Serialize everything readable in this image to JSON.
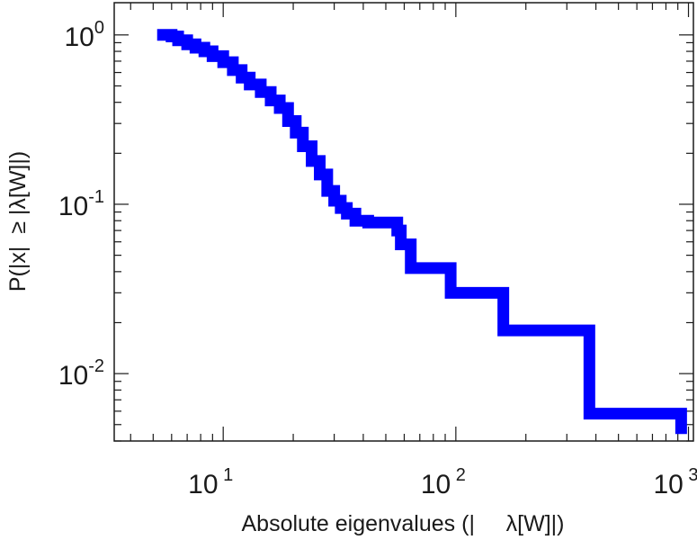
{
  "chart_data": {
    "type": "line",
    "title": "",
    "xlabel": "Absolute eigenvalues (|     λ[W]|)",
    "ylabel": "P(|x|  ≥ |λ[W]|)",
    "x_scale": "log",
    "y_scale": "log",
    "xlim": [
      3.4,
      1050
    ],
    "ylim": [
      0.004,
      1.55
    ],
    "grid": false,
    "legend": "none",
    "x_ticks": [
      {
        "base": "10",
        "exp": "1",
        "value": 10
      },
      {
        "base": "10",
        "exp": "2",
        "value": 100
      },
      {
        "base": "10",
        "exp": "3",
        "value": 1000
      }
    ],
    "y_ticks": [
      {
        "base": "10",
        "exp": "0",
        "value": 1
      },
      {
        "base": "10",
        "exp": "-1",
        "value": 0.1
      },
      {
        "base": "10",
        "exp": "-2",
        "value": 0.01
      }
    ],
    "series": [
      {
        "color": "#0000ff",
        "style": "step",
        "x": [
          5.2,
          6.0,
          6.4,
          7.0,
          7.6,
          8.3,
          9.0,
          10.0,
          11.0,
          12.0,
          13.0,
          14.5,
          16.0,
          17.5,
          19.0,
          20.5,
          22.0,
          24.0,
          26.0,
          28.0,
          30.0,
          32.0,
          34.0,
          37.0,
          42.0,
          44.0,
          50.0,
          56.0,
          58.0,
          64.0,
          95.0,
          160.0,
          375.0,
          930.0
        ],
        "y": [
          1.0,
          0.98,
          0.93,
          0.88,
          0.84,
          0.8,
          0.75,
          0.69,
          0.62,
          0.56,
          0.51,
          0.46,
          0.41,
          0.37,
          0.31,
          0.265,
          0.22,
          0.18,
          0.15,
          0.12,
          0.105,
          0.095,
          0.088,
          0.08,
          0.078,
          0.078,
          0.078,
          0.07,
          0.058,
          0.042,
          0.03,
          0.018,
          0.0058,
          0.0044
        ]
      }
    ]
  }
}
